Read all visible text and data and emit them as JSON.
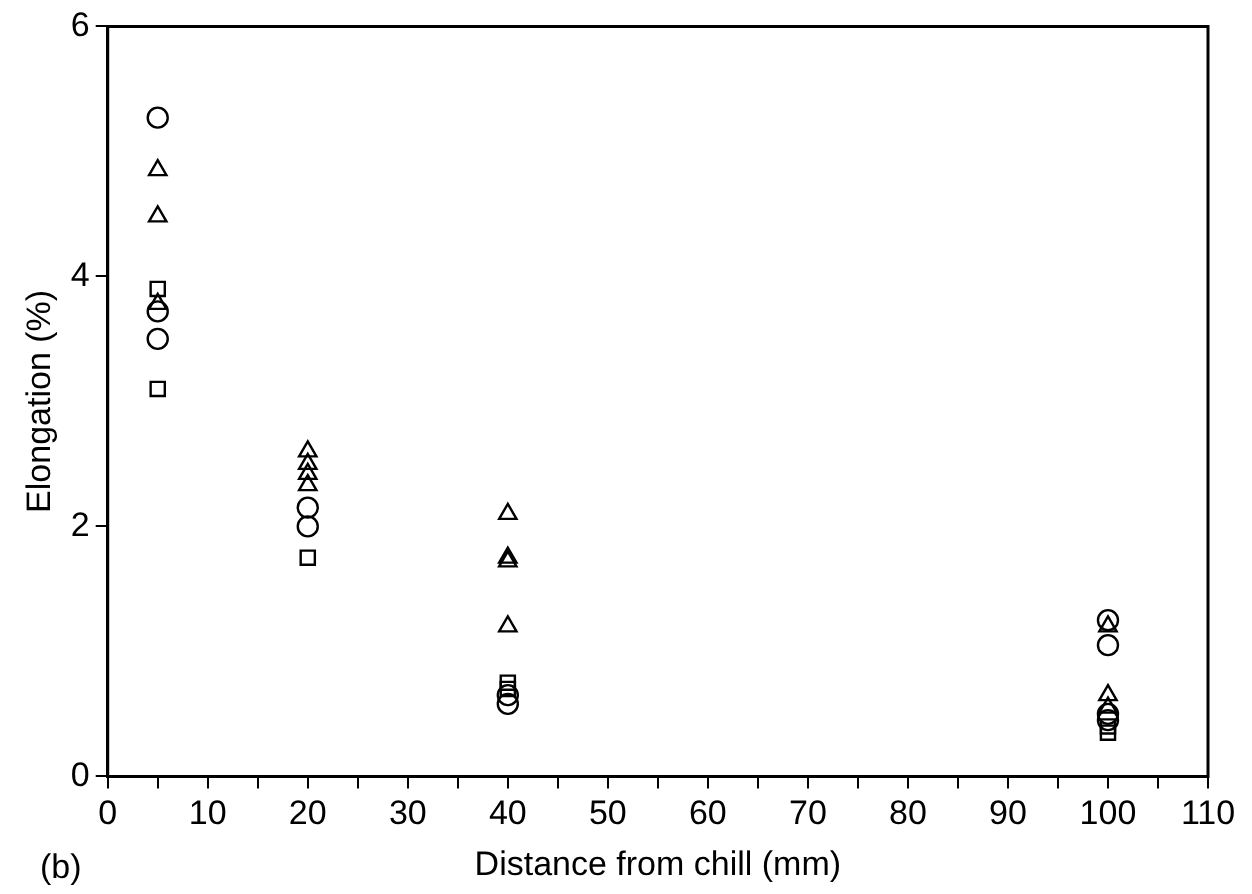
{
  "chart_data": {
    "type": "scatter",
    "xlabel": "Distance from chill (mm)",
    "ylabel": "Elongation (%)",
    "annotations": [
      "(b)"
    ],
    "xlim": [
      0,
      110
    ],
    "xticks": [
      0,
      {
        "value": 5,
        "label": null
      },
      10,
      {
        "value": 15,
        "label": null
      },
      20,
      {
        "value": 25,
        "label": null
      },
      30,
      {
        "value": 35,
        "label": null
      },
      40,
      {
        "value": 45,
        "label": null
      },
      50,
      {
        "value": 55,
        "label": null
      },
      60,
      {
        "value": 65,
        "label": null
      },
      70,
      {
        "value": 75,
        "label": null
      },
      80,
      {
        "value": 85,
        "label": null
      },
      90,
      {
        "value": 95,
        "label": null
      },
      100,
      {
        "value": 105,
        "label": null
      },
      110
    ],
    "ylim": [
      0,
      6
    ],
    "yticks": [
      0,
      2,
      4,
      6
    ],
    "grid": false,
    "legend": false,
    "series": [
      {
        "marker": "circle",
        "color": "#000000",
        "x": [
          5,
          5,
          5,
          20,
          20,
          40,
          40,
          100,
          100,
          100,
          100
        ],
        "values": [
          5.27,
          3.72,
          3.5,
          2.15,
          2.0,
          0.65,
          0.58,
          1.25,
          1.05,
          0.5,
          0.45
        ]
      },
      {
        "marker": "triangle",
        "color": "#000000",
        "x": [
          5,
          5,
          5,
          20,
          20,
          20,
          20,
          40,
          40,
          40,
          40,
          100,
          100,
          100
        ],
        "values": [
          4.85,
          4.48,
          3.78,
          2.6,
          2.5,
          2.42,
          2.33,
          2.1,
          1.75,
          1.72,
          1.2,
          1.2,
          0.65,
          0.55
        ]
      },
      {
        "marker": "square",
        "color": "#000000",
        "x": [
          5,
          5,
          20,
          40,
          40,
          100,
          100
        ],
        "values": [
          3.9,
          3.1,
          1.75,
          0.75,
          0.7,
          0.4,
          0.35
        ]
      }
    ]
  }
}
